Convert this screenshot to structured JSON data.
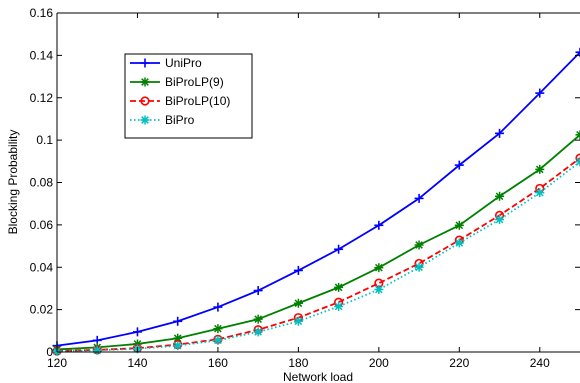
{
  "chart_data": {
    "type": "line",
    "title": "",
    "xlabel": "Network load",
    "ylabel": "Blocking Probability",
    "xlim": [
      120,
      250
    ],
    "ylim": [
      0,
      0.16
    ],
    "x_ticks": [
      120,
      140,
      160,
      180,
      200,
      220,
      240
    ],
    "x_tick_labels": [
      "120",
      "140",
      "160",
      "180",
      "200",
      "220",
      "240"
    ],
    "y_ticks": [
      0,
      0.02,
      0.04,
      0.06,
      0.08,
      0.1,
      0.12,
      0.14,
      0.16
    ],
    "y_tick_labels": [
      "0",
      "0.02",
      "0.04",
      "0.06",
      "0.08",
      "0.1",
      "0.12",
      "0.14",
      "0.16"
    ],
    "grid": false,
    "legend_position": "upper-left",
    "x": [
      120,
      130,
      140,
      150,
      160,
      170,
      180,
      190,
      200,
      210,
      220,
      230,
      240,
      250
    ],
    "series": [
      {
        "name": "UniPro",
        "color": "#0000ff",
        "marker": "plus",
        "line_style": "solid",
        "values": [
          0.003,
          0.0055,
          0.0095,
          0.0145,
          0.0212,
          0.029,
          0.0385,
          0.0485,
          0.0598,
          0.0725,
          0.0882,
          0.1032,
          0.1222,
          0.1415
        ]
      },
      {
        "name": "BiProLP(9)",
        "color": "#008000",
        "marker": "asterisk",
        "line_style": "solid",
        "values": [
          0.0012,
          0.0022,
          0.0038,
          0.0065,
          0.011,
          0.0155,
          0.023,
          0.0305,
          0.0398,
          0.0505,
          0.0598,
          0.0735,
          0.0862,
          0.1025
        ]
      },
      {
        "name": "BiProLP(10)",
        "color": "#ff0000",
        "marker": "circle",
        "line_style": "dashed",
        "values": [
          0.0005,
          0.001,
          0.0018,
          0.0035,
          0.006,
          0.0105,
          0.0162,
          0.0235,
          0.0325,
          0.0418,
          0.0528,
          0.0645,
          0.0772,
          0.0915
        ]
      },
      {
        "name": "BiPro",
        "color": "#00c0c0",
        "marker": "asterisk",
        "line_style": "dotted",
        "values": [
          0.0003,
          0.0008,
          0.0015,
          0.003,
          0.0055,
          0.0095,
          0.0145,
          0.0215,
          0.0295,
          0.04,
          0.0515,
          0.0625,
          0.0752,
          0.0898
        ]
      }
    ]
  }
}
